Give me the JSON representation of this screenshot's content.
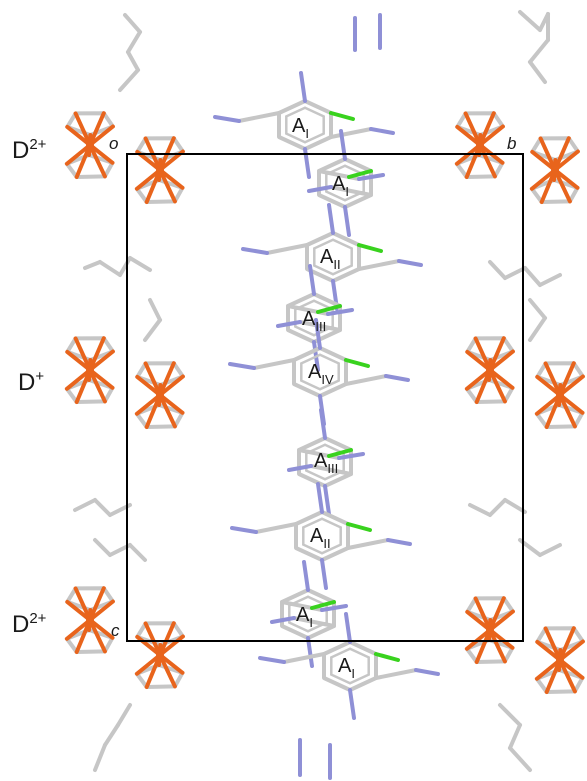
{
  "cation_labels": [
    {
      "base": "D",
      "sup": "2+"
    },
    {
      "base": "D",
      "sup": "+"
    },
    {
      "base": "D",
      "sup": "2+"
    }
  ],
  "axis_labels": {
    "origin": "o",
    "b": "b",
    "c": "c"
  },
  "anion_labels": [
    {
      "base": "A",
      "sub": "I"
    },
    {
      "base": "A",
      "sub": "I"
    },
    {
      "base": "A",
      "sub": "II"
    },
    {
      "base": "A",
      "sub": "III"
    },
    {
      "base": "A",
      "sub": "IV"
    },
    {
      "base": "A",
      "sub": "III"
    },
    {
      "base": "A",
      "sub": "II"
    },
    {
      "base": "A",
      "sub": "I"
    },
    {
      "base": "A",
      "sub": "I"
    }
  ],
  "colors": {
    "carbon": "#c6c6c6",
    "nitrogen": "#8f90d6",
    "chlorine": "#39d21e",
    "iron": "#e8641c",
    "cell": "#000000"
  }
}
